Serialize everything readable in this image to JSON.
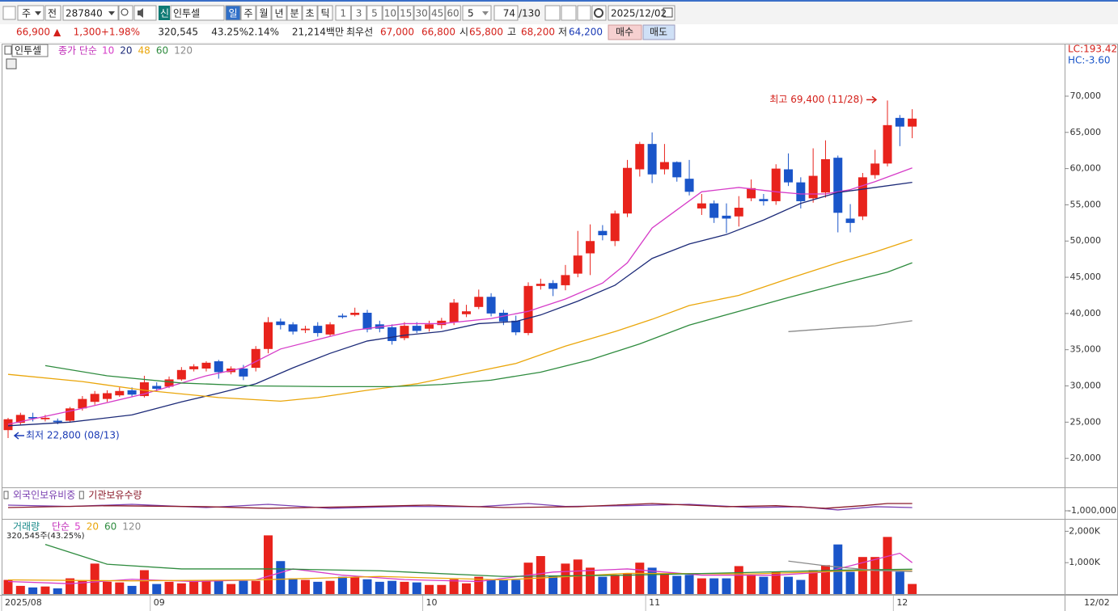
{
  "toolbar": {
    "market": "주",
    "mode": "전",
    "code": "287840",
    "badge": "신",
    "name": "인투셀",
    "periods": [
      "일",
      "주",
      "월",
      "년",
      "분",
      "초",
      "틱"
    ],
    "minutes": [
      "1",
      "3",
      "5",
      "10",
      "15",
      "30",
      "45",
      "60"
    ],
    "count_select": "5",
    "count": "74",
    "total": "/130",
    "date": "2025/12/02"
  },
  "quote": {
    "price": "66,900",
    "arrow": "▲",
    "change": "1,300",
    "rate": "+1.98%",
    "volume": "320,545",
    "volume_ratio": "43.25%",
    "turnover": "2.14%",
    "amount": "21,214백만",
    "best_label": "최우선",
    "ask": "67,000",
    "bid": "66,800",
    "open_label": "시",
    "open": "65,800",
    "high_label": "고",
    "high": "68,200",
    "low_label": "저",
    "low": "64,200",
    "buy": "매수",
    "sell": "매도"
  },
  "chart_data": [
    {
      "type": "candlestick",
      "title": "인투셀",
      "legend_title": "종가 단순",
      "lc": "LC:193.42",
      "hc": "HC:-3.60",
      "up_color": "#e8231c",
      "down_color": "#1a55c9",
      "categories": [
        "2025/08",
        null,
        null,
        null,
        null,
        null,
        null,
        null,
        null,
        null,
        null,
        null,
        "09",
        null,
        null,
        null,
        null,
        null,
        null,
        null,
        null,
        null,
        null,
        null,
        null,
        null,
        null,
        null,
        null,
        null,
        null,
        null,
        null,
        null,
        "10",
        null,
        null,
        null,
        null,
        null,
        null,
        null,
        null,
        null,
        null,
        null,
        null,
        null,
        null,
        null,
        null,
        null,
        "11",
        null,
        null,
        null,
        null,
        null,
        null,
        null,
        null,
        null,
        null,
        null,
        null,
        null,
        null,
        null,
        null,
        null,
        null,
        null,
        "12",
        null
      ],
      "x_end_label": "12/02",
      "open": [
        23900,
        24900,
        25700,
        25400,
        25200,
        25200,
        26900,
        27800,
        28200,
        28700,
        29400,
        28600,
        30000,
        29900,
        30900,
        32300,
        32400,
        33400,
        31900,
        32400,
        32500,
        35100,
        38900,
        38500,
        37700,
        38300,
        37100,
        39700,
        39800,
        40100,
        38500,
        38100,
        36600,
        38300,
        37900,
        38400,
        38800,
        39900,
        40900,
        42300,
        40100,
        39000,
        37300,
        43800,
        44200,
        43900,
        45500,
        48300,
        51400,
        50000,
        53800,
        59900,
        63400,
        59900,
        60900,
        58600,
        54500,
        55200,
        53500,
        53400,
        55900,
        55800,
        55500,
        59900,
        58100,
        55900,
        56700,
        61500,
        53100,
        53400,
        59100,
        60700,
        67000,
        65800
      ],
      "high": [
        25600,
        26300,
        26300,
        26000,
        25500,
        27100,
        28600,
        29300,
        29400,
        29800,
        29800,
        31400,
        30500,
        31300,
        32600,
        33000,
        33400,
        33600,
        32700,
        32900,
        35500,
        39500,
        39300,
        38800,
        38300,
        38800,
        38800,
        40000,
        40800,
        40500,
        39000,
        38500,
        38800,
        38800,
        39000,
        39400,
        42000,
        41200,
        43300,
        42800,
        40500,
        39700,
        44300,
        44800,
        44600,
        46700,
        51400,
        52300,
        52200,
        54200,
        61200,
        63700,
        65000,
        63400,
        61000,
        61200,
        56500,
        55600,
        55200,
        56200,
        58500,
        56500,
        60600,
        62100,
        58800,
        62800,
        63900,
        61800,
        55100,
        59400,
        62600,
        69400,
        67400,
        68200
      ],
      "low": [
        22800,
        24600,
        25100,
        25100,
        24700,
        25000,
        26600,
        27400,
        27800,
        28500,
        28500,
        28400,
        29200,
        29700,
        30700,
        32000,
        32000,
        31000,
        31600,
        30800,
        32000,
        34500,
        37800,
        37100,
        37300,
        36800,
        36900,
        39300,
        39600,
        37400,
        37400,
        35700,
        36300,
        37300,
        37500,
        37900,
        38400,
        39500,
        40600,
        39600,
        38400,
        37000,
        37000,
        43300,
        42400,
        43200,
        45000,
        45300,
        50100,
        49300,
        53300,
        58900,
        58000,
        59200,
        58200,
        56300,
        53600,
        52500,
        51100,
        52000,
        55500,
        54900,
        55000,
        57600,
        54500,
        55300,
        56000,
        51200,
        51200,
        52900,
        58600,
        60300,
        63100,
        64200
      ],
      "close": [
        25400,
        26000,
        25500,
        25600,
        25000,
        26900,
        28200,
        28900,
        29000,
        29300,
        28800,
        30500,
        29600,
        30900,
        32200,
        32700,
        33200,
        31900,
        32400,
        31300,
        35100,
        38800,
        38400,
        37500,
        37900,
        37300,
        38500,
        39500,
        40100,
        37800,
        37900,
        36200,
        38300,
        37600,
        38500,
        39000,
        41500,
        40300,
        42300,
        40000,
        38900,
        37400,
        43800,
        44100,
        43400,
        45300,
        48000,
        50000,
        50800,
        53800,
        60100,
        63400,
        59200,
        60900,
        58800,
        56800,
        55200,
        53200,
        53100,
        54600,
        57300,
        55500,
        60000,
        58100,
        55500,
        59000,
        61300,
        53900,
        52500,
        58800,
        60700,
        66000,
        65800,
        66900
      ],
      "series": [
        {
          "name": "10",
          "color": "#d63cc8",
          "x": [
            0,
            6,
            11,
            16,
            19,
            22,
            25,
            28,
            32,
            35,
            39,
            42,
            45,
            48,
            50,
            52,
            54,
            56,
            59,
            62,
            64,
            66,
            68,
            70,
            73
          ],
          "values": [
            24700,
            26900,
            28900,
            31400,
            32500,
            35100,
            36400,
            37700,
            38600,
            38600,
            39300,
            40300,
            42000,
            44200,
            47000,
            51800,
            54300,
            56800,
            57400,
            56800,
            56500,
            56500,
            57100,
            58200,
            60100
          ]
        },
        {
          "name": "20",
          "color": "#1c2a78",
          "x": [
            0,
            5,
            10,
            14,
            17,
            20,
            23,
            26,
            29,
            32,
            35,
            38,
            41,
            43,
            46,
            49,
            52,
            55,
            58,
            61,
            64,
            67,
            70,
            73
          ],
          "values": [
            24500,
            25000,
            26000,
            27800,
            29000,
            30300,
            32500,
            34500,
            36200,
            37000,
            37500,
            38600,
            38900,
            39800,
            41700,
            43900,
            47600,
            49600,
            50900,
            52900,
            55200,
            56700,
            57400,
            58100
          ]
        },
        {
          "name": "48",
          "color": "#eaa60a",
          "x": [
            0,
            6,
            11,
            17,
            22,
            25,
            29,
            33,
            37,
            41,
            45,
            49,
            52,
            55,
            59,
            63,
            67,
            70,
            73
          ],
          "values": [
            31600,
            30600,
            29400,
            28400,
            27900,
            28400,
            29400,
            30300,
            31700,
            33100,
            35500,
            37500,
            39200,
            41100,
            42500,
            44800,
            47000,
            48500,
            50200
          ]
        },
        {
          "name": "60",
          "color": "#2e8b3e",
          "x": [
            3,
            8,
            14,
            20,
            26,
            31,
            35,
            39,
            43,
            47,
            51,
            55,
            59,
            63,
            67,
            71,
            73
          ],
          "values": [
            32800,
            31400,
            30400,
            30000,
            29900,
            29900,
            30200,
            30800,
            31900,
            33600,
            35800,
            38400,
            40300,
            42200,
            44000,
            45700,
            47000
          ]
        },
        {
          "name": "120",
          "color": "#8a8a8a",
          "x": [
            63,
            67,
            70,
            73
          ],
          "values": [
            37500,
            38000,
            38300,
            39000
          ]
        }
      ],
      "annotations": [
        {
          "text": "최고 69,400 (11/28)",
          "value": 69400,
          "color": "#d4201a"
        },
        {
          "text": "최저 22,800 (08/13)",
          "value": 22800,
          "color": "#1a3ab5"
        }
      ],
      "ylim": [
        16000,
        77250
      ],
      "yticks": [
        {
          "value": 20000,
          "label": "20,000"
        },
        {
          "value": 25000,
          "label": "25,000"
        },
        {
          "value": 30000,
          "label": "30,000"
        },
        {
          "value": 35000,
          "label": "35,000"
        },
        {
          "value": 40000,
          "label": "40,000"
        },
        {
          "value": 45000,
          "label": "45,000"
        },
        {
          "value": 50000,
          "label": "50,000"
        },
        {
          "value": 55000,
          "label": "55,000"
        },
        {
          "value": 60000,
          "label": "60,000"
        },
        {
          "value": 65000,
          "label": "65,000"
        },
        {
          "value": 70000,
          "label": "70,000"
        }
      ]
    },
    {
      "type": "line",
      "series": [
        {
          "name": "외국인보유비중",
          "color": "#7a3fb0",
          "x": [
            0,
            5,
            10,
            16,
            21,
            26,
            32,
            38,
            42,
            45,
            50,
            55,
            60,
            64,
            67,
            70,
            73
          ],
          "values": [
            -611000,
            -700000,
            -555000,
            -780000,
            -555000,
            -830000,
            -700000,
            -720000,
            -500000,
            -700000,
            -650000,
            -555000,
            -780000,
            -720000,
            -940000,
            -720000,
            -780000
          ]
        },
        {
          "name": "기관보유수량",
          "color": "#8a1a2a",
          "x": [
            0,
            8,
            16,
            21,
            28,
            34,
            40,
            46,
            52,
            58,
            62,
            66,
            69,
            71,
            73
          ],
          "values": [
            -780000,
            -650000,
            -720000,
            -830000,
            -720000,
            -610000,
            -780000,
            -720000,
            -500000,
            -720000,
            -650000,
            -830000,
            -650000,
            -500000,
            -500000
          ]
        }
      ],
      "ylim": [
        -1500000,
        555000
      ],
      "yticks": [
        {
          "value": -1000000,
          "label": "-1,000,000"
        }
      ]
    },
    {
      "type": "bar",
      "title": "거래량",
      "legend_title": "단순",
      "info": "320,545주(43.25%)",
      "values": [
        450,
        260,
        210,
        240,
        180,
        500,
        420,
        970,
        390,
        370,
        260,
        760,
        320,
        390,
        340,
        420,
        420,
        420,
        320,
        420,
        420,
        1870,
        1050,
        500,
        450,
        390,
        420,
        550,
        530,
        470,
        390,
        420,
        390,
        370,
        290,
        290,
        470,
        340,
        550,
        450,
        450,
        450,
        1000,
        1210,
        580,
        970,
        1100,
        840,
        550,
        610,
        660,
        1000,
        840,
        660,
        580,
        610,
        500,
        500,
        500,
        890,
        610,
        550,
        710,
        550,
        450,
        760,
        920,
        1580,
        710,
        1180,
        1180,
        1820,
        710,
        320.545
      ],
      "series": [
        {
          "name": "5",
          "color": "#d63cc8",
          "x": [
            0,
            5,
            10,
            15,
            20,
            23,
            27,
            32,
            38,
            44,
            50,
            56,
            62,
            66,
            70,
            72,
            73
          ],
          "values": [
            400,
            330,
            470,
            400,
            450,
            800,
            600,
            460,
            400,
            700,
            800,
            600,
            600,
            700,
            1100,
            1300,
            1000
          ]
        },
        {
          "name": "20",
          "color": "#eaa60a",
          "x": [
            0,
            10,
            20,
            30,
            40,
            50,
            60,
            70,
            73
          ],
          "values": [
            450,
            420,
            450,
            560,
            450,
            660,
            640,
            760,
            740
          ]
        },
        {
          "name": "60",
          "color": "#2e8b3e",
          "x": [
            3,
            8,
            14,
            22,
            30,
            40,
            50,
            60,
            67,
            73
          ],
          "values": [
            1580,
            950,
            800,
            800,
            740,
            560,
            600,
            690,
            760,
            790
          ]
        },
        {
          "name": "120",
          "color": "#8a8a8a",
          "x": [
            63,
            66,
            70,
            73
          ],
          "values": [
            1050,
            900,
            750,
            720
          ]
        }
      ],
      "ylim": [
        0,
        2370
      ],
      "yticks": [
        {
          "value": 1000,
          "label": "1,000K"
        },
        {
          "value": 2000,
          "label": "2,000K"
        }
      ]
    }
  ]
}
